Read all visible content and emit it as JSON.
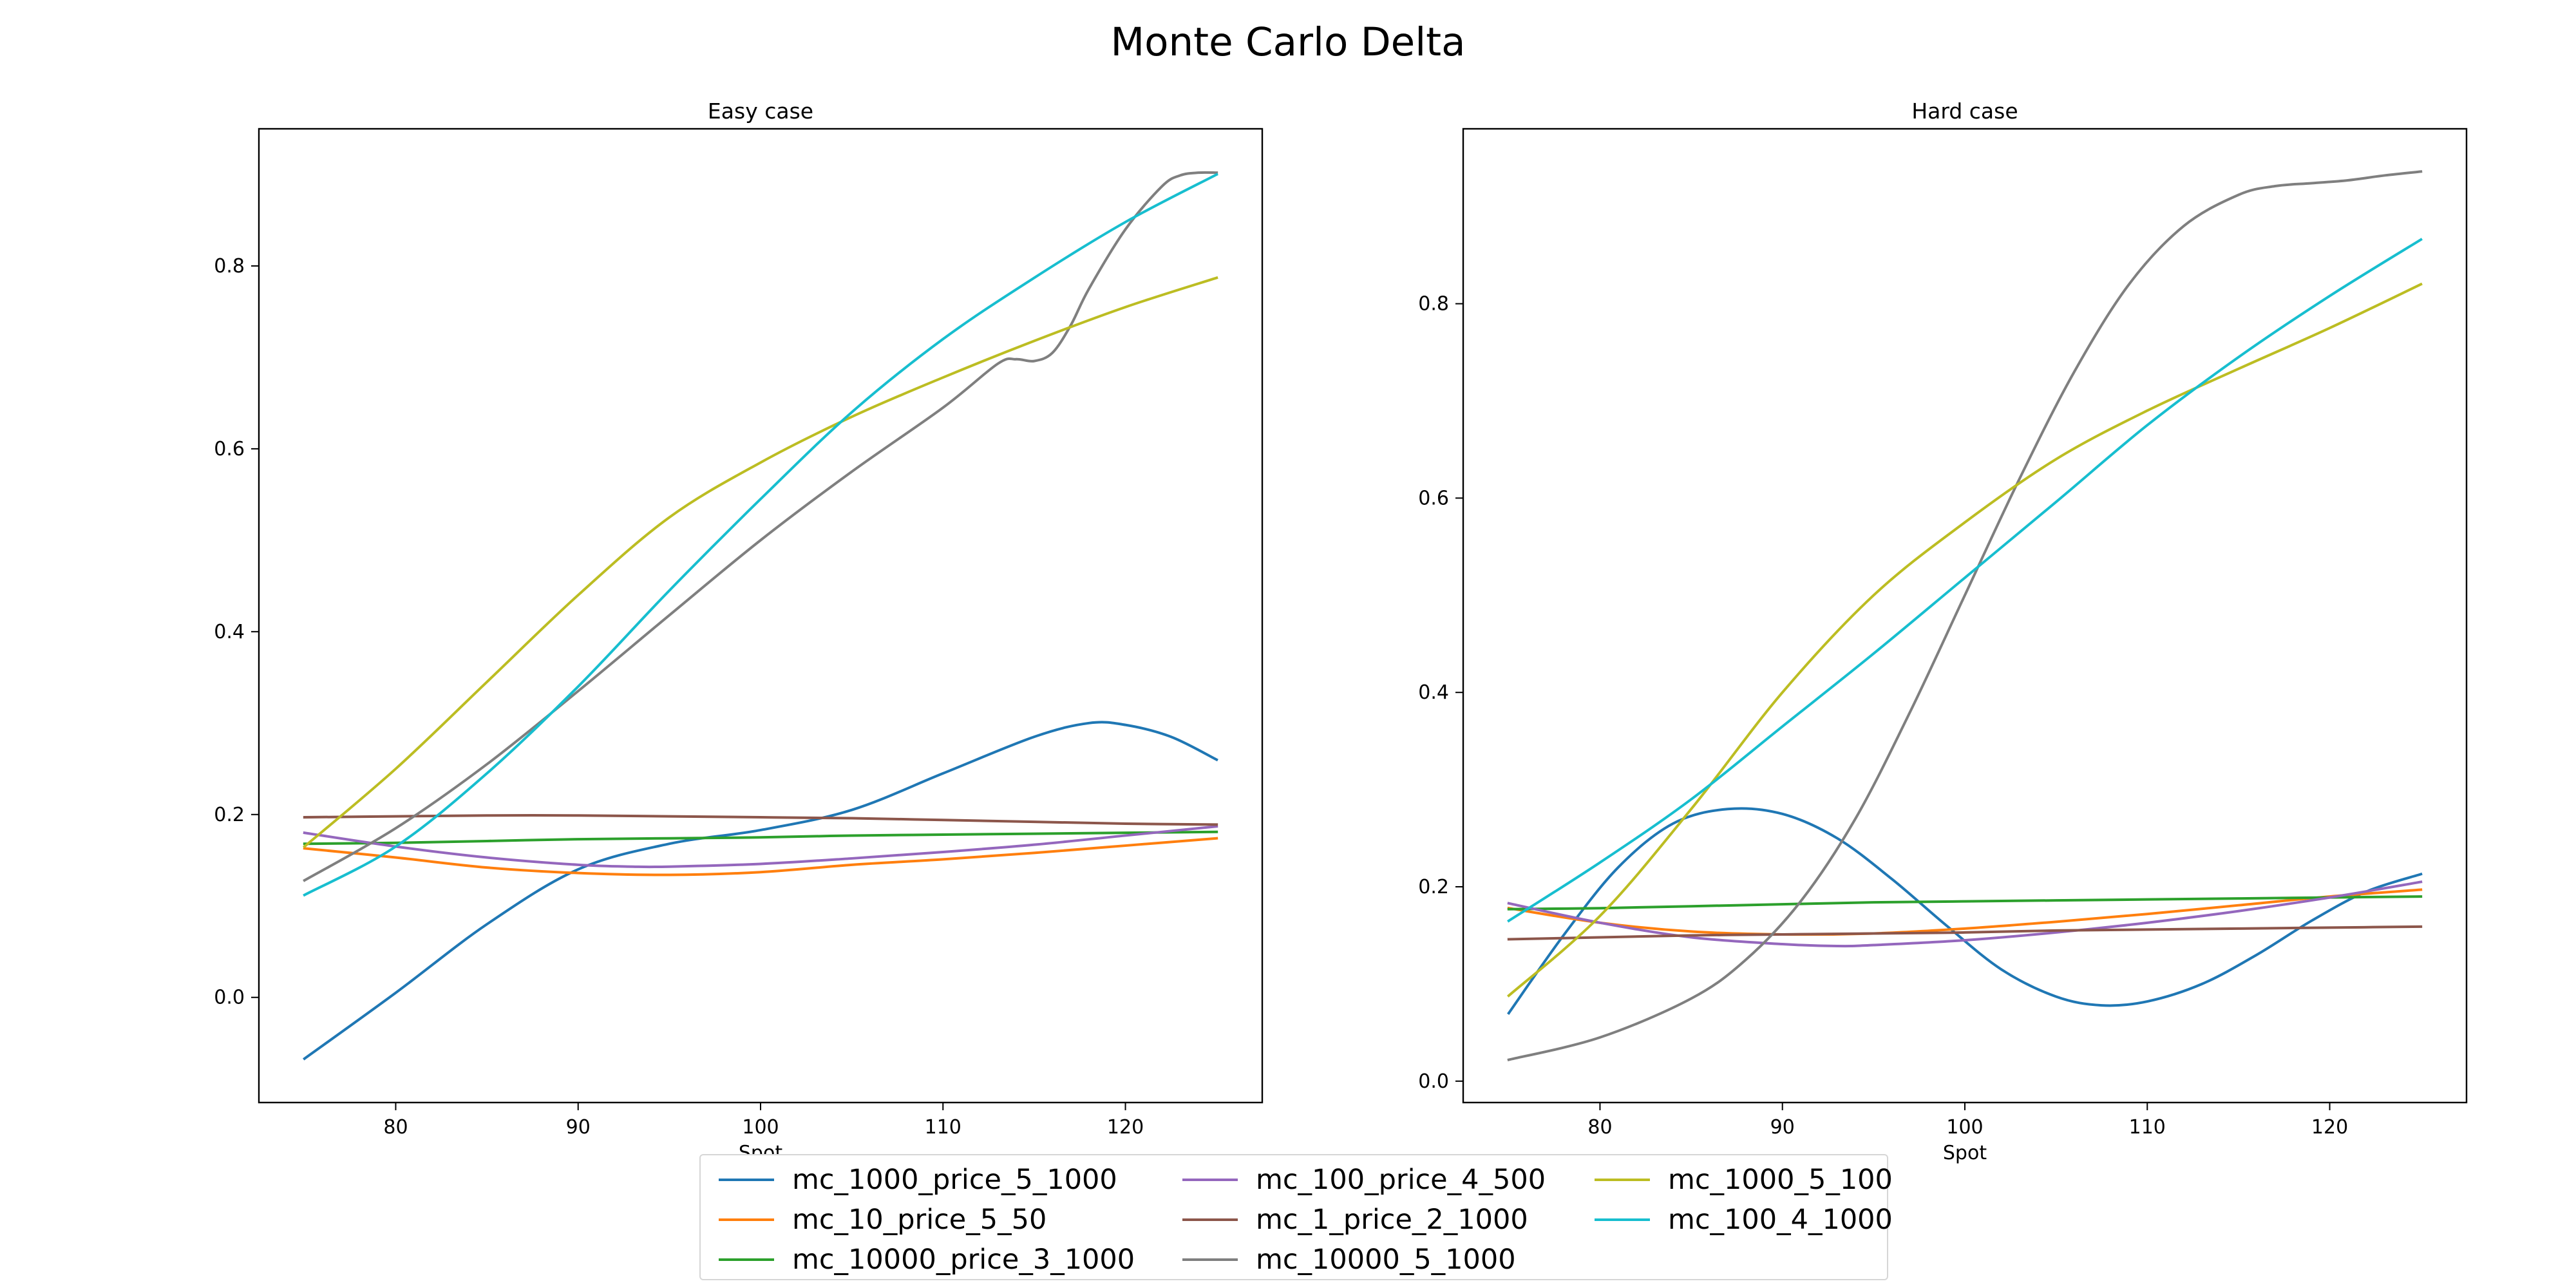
{
  "figure_title": "Monte Carlo Delta",
  "chart_data": [
    {
      "type": "line",
      "title": "Easy case",
      "xlabel": "Spot",
      "ylabel": "",
      "xlim": [
        72.5,
        127.5
      ],
      "ylim": [
        -0.115,
        0.95
      ],
      "xticks": [
        80,
        90,
        100,
        110,
        120
      ],
      "yticks": [
        0.0,
        0.2,
        0.4,
        0.6,
        0.8
      ],
      "ytick_labels": [
        "0.0",
        "0.2",
        "0.4",
        "0.6",
        "0.8"
      ],
      "grid": false,
      "series": [
        {
          "name": "mc_1000_price_5_1000",
          "color": "#1f77b4",
          "points": [
            [
              75,
              -0.067
            ],
            [
              80,
              0.005
            ],
            [
              85,
              0.08
            ],
            [
              90,
              0.14
            ],
            [
              95,
              0.168
            ],
            [
              100,
              0.183
            ],
            [
              105,
              0.205
            ],
            [
              110,
              0.245
            ],
            [
              115,
              0.285
            ],
            [
              118,
              0.3
            ],
            [
              120,
              0.298
            ],
            [
              122.5,
              0.285
            ],
            [
              125,
              0.26
            ]
          ]
        },
        {
          "name": "mc_10_price_5_50",
          "color": "#ff7f0e",
          "points": [
            [
              75,
              0.163
            ],
            [
              80,
              0.153
            ],
            [
              85,
              0.142
            ],
            [
              90,
              0.136
            ],
            [
              95,
              0.134
            ],
            [
              100,
              0.137
            ],
            [
              105,
              0.145
            ],
            [
              110,
              0.151
            ],
            [
              115,
              0.158
            ],
            [
              120,
              0.166
            ],
            [
              125,
              0.174
            ]
          ]
        },
        {
          "name": "mc_10000_price_3_1000",
          "color": "#2ca02c",
          "points": [
            [
              75,
              0.168
            ],
            [
              80,
              0.169
            ],
            [
              85,
              0.171
            ],
            [
              90,
              0.173
            ],
            [
              95,
              0.174
            ],
            [
              100,
              0.175
            ],
            [
              105,
              0.177
            ],
            [
              110,
              0.178
            ],
            [
              115,
              0.179
            ],
            [
              120,
              0.18
            ],
            [
              125,
              0.181
            ]
          ]
        },
        {
          "name": "mc_100_price_4_500",
          "color": "#9467bd",
          "points": [
            [
              75,
              0.18
            ],
            [
              80,
              0.165
            ],
            [
              85,
              0.153
            ],
            [
              90,
              0.145
            ],
            [
              93,
              0.143
            ],
            [
              95,
              0.143
            ],
            [
              100,
              0.146
            ],
            [
              105,
              0.152
            ],
            [
              110,
              0.159
            ],
            [
              115,
              0.167
            ],
            [
              120,
              0.177
            ],
            [
              125,
              0.187
            ]
          ]
        },
        {
          "name": "mc_1_price_2_1000",
          "color": "#8c564b",
          "points": [
            [
              75,
              0.197
            ],
            [
              80,
              0.198
            ],
            [
              85,
              0.199
            ],
            [
              90,
              0.199
            ],
            [
              95,
              0.198
            ],
            [
              100,
              0.197
            ],
            [
              105,
              0.196
            ],
            [
              110,
              0.194
            ],
            [
              115,
              0.192
            ],
            [
              120,
              0.19
            ],
            [
              125,
              0.189
            ]
          ]
        },
        {
          "name": "mc_10000_5_1000",
          "color": "#7f7f7f",
          "points": [
            [
              75,
              0.128
            ],
            [
              80,
              0.185
            ],
            [
              85,
              0.255
            ],
            [
              90,
              0.335
            ],
            [
              95,
              0.418
            ],
            [
              100,
              0.5
            ],
            [
              105,
              0.575
            ],
            [
              110,
              0.645
            ],
            [
              113,
              0.693
            ],
            [
              114,
              0.698
            ],
            [
              115,
              0.696
            ],
            [
              116,
              0.705
            ],
            [
              117,
              0.735
            ],
            [
              118,
              0.775
            ],
            [
              120,
              0.84
            ],
            [
              122,
              0.887
            ],
            [
              123,
              0.899
            ],
            [
              124,
              0.902
            ],
            [
              125,
              0.902
            ]
          ]
        },
        {
          "name": "mc_1000_5_100",
          "color": "#bcbd22",
          "points": [
            [
              75,
              0.165
            ],
            [
              80,
              0.25
            ],
            [
              85,
              0.345
            ],
            [
              90,
              0.44
            ],
            [
              95,
              0.525
            ],
            [
              100,
              0.585
            ],
            [
              105,
              0.635
            ],
            [
              110,
              0.678
            ],
            [
              115,
              0.718
            ],
            [
              120,
              0.755
            ],
            [
              125,
              0.787
            ]
          ]
        },
        {
          "name": "mc_100_4_1000",
          "color": "#17becf",
          "points": [
            [
              75,
              0.112
            ],
            [
              80,
              0.165
            ],
            [
              85,
              0.245
            ],
            [
              90,
              0.34
            ],
            [
              95,
              0.445
            ],
            [
              100,
              0.545
            ],
            [
              105,
              0.64
            ],
            [
              110,
              0.72
            ],
            [
              115,
              0.787
            ],
            [
              120,
              0.848
            ],
            [
              125,
              0.9
            ]
          ]
        }
      ]
    },
    {
      "type": "line",
      "title": "Hard case",
      "xlabel": "Spot",
      "ylabel": "",
      "xlim": [
        72.5,
        127.5
      ],
      "ylim": [
        -0.022,
        0.98
      ],
      "xticks": [
        80,
        90,
        100,
        110,
        120
      ],
      "yticks": [
        0.0,
        0.2,
        0.4,
        0.6,
        0.8
      ],
      "ytick_labels": [
        "0.0",
        "0.2",
        "0.4",
        "0.6",
        "0.8"
      ],
      "grid": false,
      "series": [
        {
          "name": "mc_1000_price_5_1000",
          "color": "#1f77b4",
          "points": [
            [
              75,
              0.07
            ],
            [
              78,
              0.15
            ],
            [
              81,
              0.22
            ],
            [
              84,
              0.265
            ],
            [
              87,
              0.28
            ],
            [
              90,
              0.275
            ],
            [
              93,
              0.25
            ],
            [
              96,
              0.208
            ],
            [
              99,
              0.16
            ],
            [
              102,
              0.115
            ],
            [
              105,
              0.087
            ],
            [
              107.5,
              0.078
            ],
            [
              110,
              0.082
            ],
            [
              113,
              0.1
            ],
            [
              116,
              0.13
            ],
            [
              119,
              0.165
            ],
            [
              122,
              0.195
            ],
            [
              125,
              0.213
            ]
          ]
        },
        {
          "name": "mc_10_price_5_50",
          "color": "#ff7f0e",
          "points": [
            [
              75,
              0.178
            ],
            [
              80,
              0.163
            ],
            [
              85,
              0.154
            ],
            [
              90,
              0.151
            ],
            [
              95,
              0.152
            ],
            [
              100,
              0.157
            ],
            [
              105,
              0.164
            ],
            [
              110,
              0.172
            ],
            [
              115,
              0.181
            ],
            [
              120,
              0.19
            ],
            [
              125,
              0.197
            ]
          ]
        },
        {
          "name": "mc_10000_price_3_1000",
          "color": "#2ca02c",
          "points": [
            [
              75,
              0.177
            ],
            [
              80,
              0.178
            ],
            [
              85,
              0.18
            ],
            [
              90,
              0.182
            ],
            [
              95,
              0.184
            ],
            [
              100,
              0.185
            ],
            [
              105,
              0.186
            ],
            [
              110,
              0.187
            ],
            [
              115,
              0.188
            ],
            [
              120,
              0.189
            ],
            [
              125,
              0.19
            ]
          ]
        },
        {
          "name": "mc_100_price_4_500",
          "color": "#9467bd",
          "points": [
            [
              75,
              0.183
            ],
            [
              80,
              0.163
            ],
            [
              85,
              0.148
            ],
            [
              90,
              0.141
            ],
            [
              93,
              0.139
            ],
            [
              95,
              0.14
            ],
            [
              100,
              0.145
            ],
            [
              105,
              0.153
            ],
            [
              110,
              0.163
            ],
            [
              115,
              0.175
            ],
            [
              120,
              0.189
            ],
            [
              125,
              0.205
            ]
          ]
        },
        {
          "name": "mc_1_price_2_1000",
          "color": "#8c564b",
          "points": [
            [
              75,
              0.146
            ],
            [
              80,
              0.148
            ],
            [
              85,
              0.15
            ],
            [
              90,
              0.151
            ],
            [
              95,
              0.152
            ],
            [
              100,
              0.153
            ],
            [
              105,
              0.155
            ],
            [
              110,
              0.156
            ],
            [
              115,
              0.157
            ],
            [
              120,
              0.158
            ],
            [
              125,
              0.159
            ]
          ]
        },
        {
          "name": "mc_10000_5_1000",
          "color": "#7f7f7f",
          "points": [
            [
              75,
              0.022
            ],
            [
              80,
              0.045
            ],
            [
              85,
              0.085
            ],
            [
              88,
              0.125
            ],
            [
              91,
              0.185
            ],
            [
              94,
              0.27
            ],
            [
              97,
              0.38
            ],
            [
              100,
              0.5
            ],
            [
              103,
              0.62
            ],
            [
              106,
              0.73
            ],
            [
              109,
              0.82
            ],
            [
              112,
              0.88
            ],
            [
              115,
              0.912
            ],
            [
              117,
              0.921
            ],
            [
              119,
              0.924
            ],
            [
              121,
              0.927
            ],
            [
              123,
              0.932
            ],
            [
              125,
              0.936
            ]
          ]
        },
        {
          "name": "mc_1000_5_100",
          "color": "#bcbd22",
          "points": [
            [
              75,
              0.088
            ],
            [
              80,
              0.17
            ],
            [
              85,
              0.28
            ],
            [
              90,
              0.4
            ],
            [
              95,
              0.5
            ],
            [
              100,
              0.575
            ],
            [
              105,
              0.64
            ],
            [
              110,
              0.69
            ],
            [
              115,
              0.733
            ],
            [
              120,
              0.775
            ],
            [
              125,
              0.82
            ]
          ]
        },
        {
          "name": "mc_100_4_1000",
          "color": "#17becf",
          "points": [
            [
              75,
              0.165
            ],
            [
              80,
              0.225
            ],
            [
              85,
              0.29
            ],
            [
              90,
              0.365
            ],
            [
              95,
              0.44
            ],
            [
              100,
              0.518
            ],
            [
              105,
              0.596
            ],
            [
              110,
              0.675
            ],
            [
              115,
              0.745
            ],
            [
              120,
              0.808
            ],
            [
              125,
              0.866
            ]
          ]
        }
      ]
    }
  ],
  "legend": {
    "placement": "bottom-center",
    "entries": [
      {
        "label": "mc_1000_price_5_1000",
        "color": "#1f77b4"
      },
      {
        "label": "mc_10_price_5_50",
        "color": "#ff7f0e"
      },
      {
        "label": "mc_10000_price_3_1000",
        "color": "#2ca02c"
      },
      {
        "label": "mc_100_price_4_500",
        "color": "#9467bd"
      },
      {
        "label": "mc_1_price_2_1000",
        "color": "#8c564b"
      },
      {
        "label": "mc_10000_5_1000",
        "color": "#7f7f7f"
      },
      {
        "label": "mc_1000_5_100",
        "color": "#bcbd22"
      },
      {
        "label": "mc_100_4_1000",
        "color": "#17becf"
      }
    ]
  }
}
